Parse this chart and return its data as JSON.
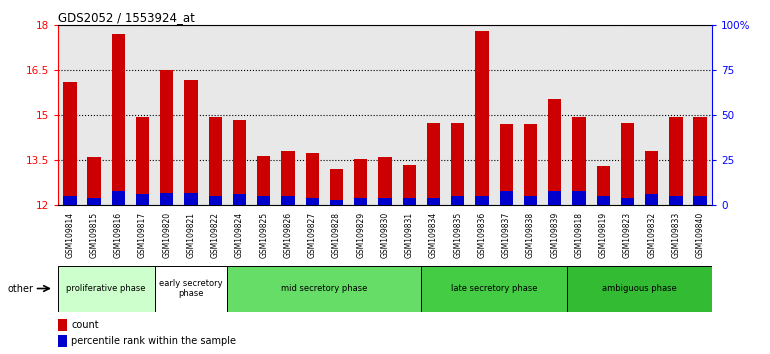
{
  "title": "GDS2052 / 1553924_at",
  "samples": [
    "GSM109814",
    "GSM109815",
    "GSM109816",
    "GSM109817",
    "GSM109820",
    "GSM109821",
    "GSM109822",
    "GSM109824",
    "GSM109825",
    "GSM109826",
    "GSM109827",
    "GSM109828",
    "GSM109829",
    "GSM109830",
    "GSM109831",
    "GSM109834",
    "GSM109835",
    "GSM109836",
    "GSM109837",
    "GSM109838",
    "GSM109839",
    "GSM109818",
    "GSM109819",
    "GSM109823",
    "GSM109832",
    "GSM109833",
    "GSM109840"
  ],
  "count_values": [
    16.1,
    13.6,
    17.7,
    14.95,
    16.5,
    16.15,
    14.95,
    14.85,
    13.65,
    13.8,
    13.75,
    13.2,
    13.55,
    13.6,
    13.35,
    14.75,
    14.75,
    17.8,
    14.7,
    14.7,
    15.55,
    14.95,
    13.3,
    14.75,
    13.8,
    14.95,
    14.95
  ],
  "percentile_values": [
    5,
    4,
    8,
    6,
    7,
    7,
    5,
    6,
    5,
    5,
    4,
    3,
    4,
    4,
    4,
    4,
    5,
    5,
    8,
    5,
    8,
    8,
    5,
    4,
    6,
    5,
    5
  ],
  "ymin": 12,
  "ymax": 18,
  "yticks": [
    12,
    13.5,
    15,
    16.5,
    18
  ],
  "ytick_labels": [
    "12",
    "13.5",
    "15",
    "16.5",
    "18"
  ],
  "right_yticks": [
    0,
    25,
    50,
    75,
    100
  ],
  "bar_width": 0.55,
  "count_color": "#cc0000",
  "percentile_color": "#0000cc",
  "count_base": 12,
  "percentile_scale_max": 100,
  "phases": [
    {
      "label": "proliferative phase",
      "start": 0,
      "end": 4,
      "color": "#ccffcc"
    },
    {
      "label": "early secretory\nphase",
      "start": 4,
      "end": 7,
      "color": "#ffffff"
    },
    {
      "label": "mid secretory phase",
      "start": 7,
      "end": 15,
      "color": "#66dd66"
    },
    {
      "label": "late secretory phase",
      "start": 15,
      "end": 21,
      "color": "#44cc44"
    },
    {
      "label": "ambiguous phase",
      "start": 21,
      "end": 27,
      "color": "#33bb33"
    }
  ],
  "plot_bg_color": "#e8e8e8",
  "fig_bg_color": "#ffffff",
  "other_label": "other"
}
